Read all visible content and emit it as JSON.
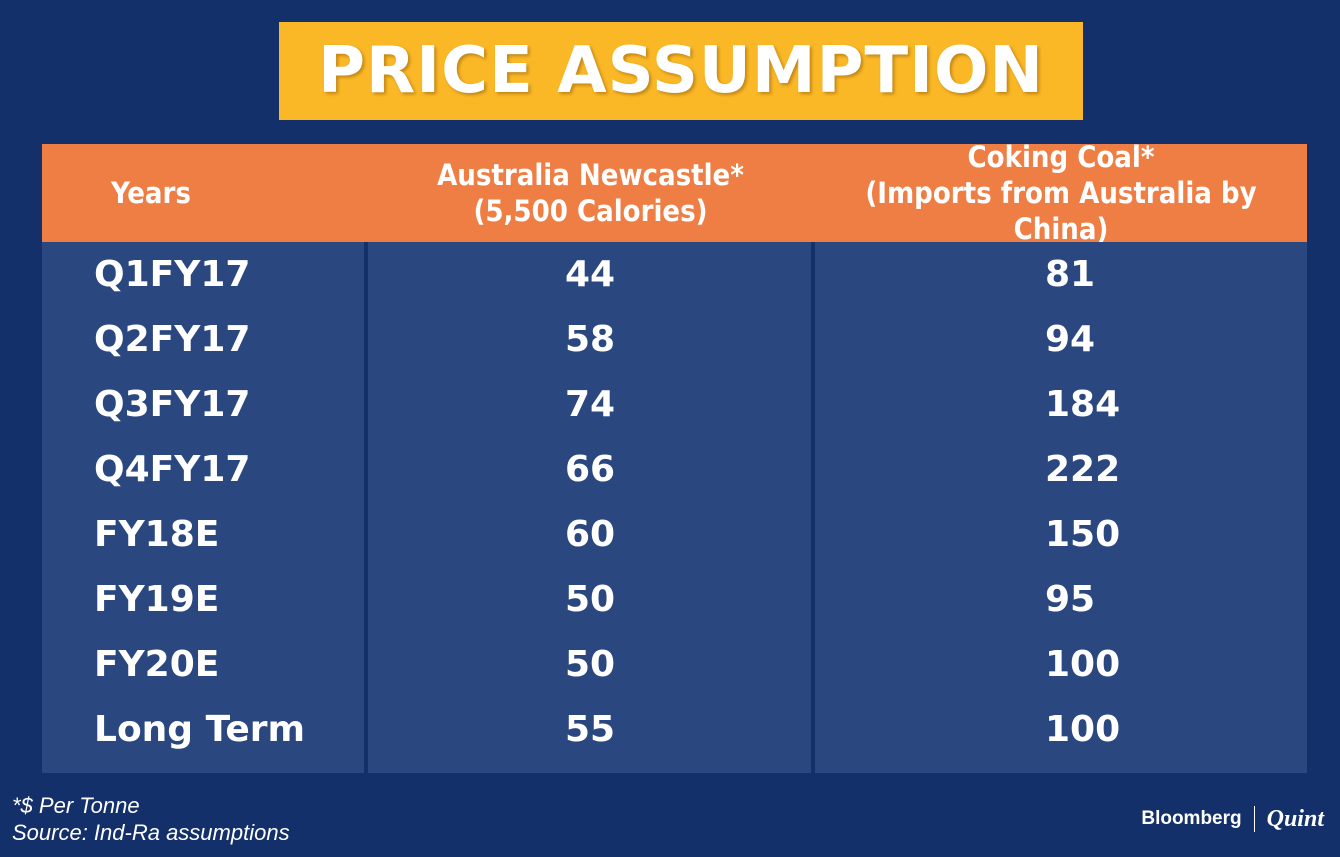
{
  "title": "PRICE ASSUMPTION",
  "chart_data": {
    "type": "table",
    "columns": [
      {
        "line1": "Years",
        "line2": ""
      },
      {
        "line1": "Australia Newcastle*",
        "line2": "(5,500 Calories)"
      },
      {
        "line1": "Coking Coal*",
        "line2": "(Imports from Australia by China)"
      }
    ],
    "rows": [
      [
        "Q1FY17",
        "44",
        "81"
      ],
      [
        "Q2FY17",
        "58",
        "94"
      ],
      [
        "Q3FY17",
        "74",
        "184"
      ],
      [
        "Q4FY17",
        "66",
        "222"
      ],
      [
        "FY18E",
        "60",
        "150"
      ],
      [
        "FY19E",
        "50",
        "95"
      ],
      [
        "FY20E",
        "50",
        "100"
      ],
      [
        "Long Term",
        "55",
        "100"
      ]
    ]
  },
  "footnote": {
    "unit": "*$ Per Tonne",
    "source": "Source: Ind-Ra assumptions"
  },
  "brand": {
    "left": "Bloomberg",
    "right": "Quint"
  },
  "colors": {
    "background": "#13306a",
    "title_box": "#fbb826",
    "header": "#ef7e45",
    "cell_bg": "#2a4780"
  }
}
